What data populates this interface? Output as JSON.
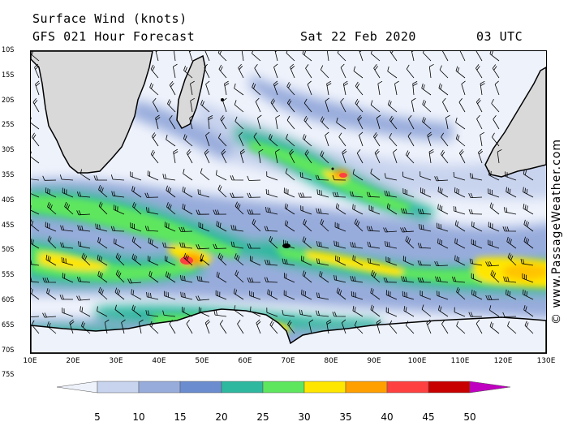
{
  "header": {
    "title": "Surface Wind (knots)",
    "subtitle": "GFS 021 Hour Forecast",
    "date": "Sat 22 Feb 2020",
    "time": "03 UTC"
  },
  "latitude_labels": [
    "10S",
    "15S",
    "20S",
    "25S",
    "30S",
    "35S",
    "40S",
    "45S",
    "50S",
    "55S",
    "60S",
    "65S",
    "70S",
    "75S"
  ],
  "longitude_labels": [
    "10E",
    "20E",
    "30E",
    "40E",
    "50E",
    "60E",
    "70E",
    "80E",
    "90E",
    "100E",
    "110E",
    "120E",
    "130E"
  ],
  "legend": {
    "labels": [
      "5",
      "10",
      "15",
      "20",
      "25",
      "30",
      "35",
      "40",
      "45",
      "50"
    ],
    "colors": [
      "#eef2fb",
      "#c8d3ee",
      "#98acdc",
      "#6b8ccf",
      "#2fb8a0",
      "#5ee65e",
      "#ffe600",
      "#ff9f00",
      "#ff4040",
      "#c80000",
      "#c000c0"
    ]
  },
  "copyright": "© www.PassageWeather.com",
  "map_colors": {
    "land": "#d9d9d9",
    "ocean_calm": "#eef2fb",
    "coast": "#000000"
  }
}
